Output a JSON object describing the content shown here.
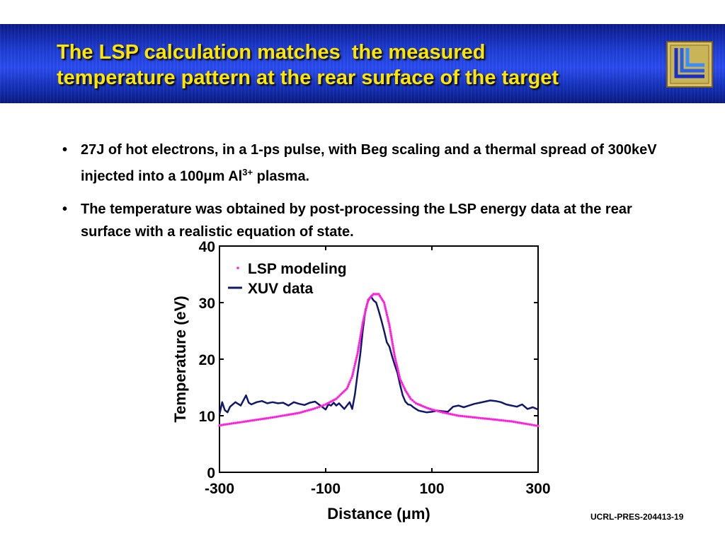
{
  "slide": {
    "title_line1": "The LSP calculation matches  the measured",
    "title_line2": "temperature pattern at the rear surface of the target",
    "bullets": [
      {
        "text_before_mu": "27J of hot electrons, in a 1-ps pulse, with Beg scaling and a thermal spread of 300keV injected into a 100",
        "mu": "μ",
        "text_after_mu": "m Al",
        "superscript": "3+",
        "text_end": " plasma."
      },
      {
        "text": "The temperature was obtained by post-processing the LSP energy data at the rear surface with a realistic equation of state."
      }
    ],
    "footer_id": "UCRL-PRES-204413-19",
    "colors": {
      "title": "#ffe600",
      "banner": "#1f3fd8",
      "lsp_series": "#ff22dd",
      "xuv_series": "#10186e"
    }
  },
  "chart_data": {
    "type": "line",
    "xlabel": "Distance (μm)",
    "ylabel": "Temperature (eV)",
    "xlim": [
      -300,
      300
    ],
    "ylim": [
      0,
      40
    ],
    "x_ticks": [
      "-300",
      "-100",
      "100",
      "300"
    ],
    "y_ticks": [
      "0",
      "10",
      "20",
      "30",
      "40"
    ],
    "legend_position": "top-left",
    "series": [
      {
        "name": "LSP modeling",
        "style": "dotted",
        "color": "#ff22dd",
        "x": [
          -300,
          -250,
          -200,
          -150,
          -120,
          -100,
          -80,
          -60,
          -50,
          -40,
          -30,
          -20,
          -10,
          0,
          10,
          20,
          30,
          40,
          50,
          60,
          70,
          80,
          90,
          100,
          120,
          150,
          200,
          250,
          300
        ],
        "y": [
          8.3,
          9.0,
          9.7,
          10.5,
          11.3,
          12.0,
          13.0,
          14.8,
          17.0,
          21.0,
          26.5,
          30.5,
          31.5,
          31.5,
          30.0,
          26.0,
          20.5,
          16.5,
          14.5,
          13.0,
          12.2,
          11.8,
          11.4,
          11.1,
          10.6,
          10.0,
          9.5,
          9.0,
          8.2
        ]
      },
      {
        "name": "XUV data",
        "style": "solid",
        "color": "#10186e",
        "x": [
          -300,
          -295,
          -290,
          -285,
          -280,
          -270,
          -260,
          -250,
          -245,
          -240,
          -230,
          -220,
          -210,
          -200,
          -190,
          -180,
          -170,
          -160,
          -150,
          -140,
          -130,
          -120,
          -110,
          -100,
          -95,
          -90,
          -85,
          -80,
          -75,
          -70,
          -65,
          -60,
          -55,
          -50,
          -45,
          -40,
          -35,
          -30,
          -25,
          -20,
          -15,
          -10,
          -5,
          0,
          5,
          10,
          15,
          20,
          25,
          30,
          35,
          40,
          45,
          50,
          55,
          60,
          65,
          70,
          75,
          80,
          90,
          100,
          110,
          120,
          130,
          140,
          150,
          160,
          170,
          180,
          190,
          200,
          210,
          220,
          230,
          240,
          250,
          260,
          270,
          280,
          290,
          300
        ],
        "y": [
          10.2,
          12.4,
          11.0,
          10.6,
          11.6,
          12.4,
          11.8,
          13.6,
          12.3,
          12.0,
          12.4,
          12.6,
          12.2,
          12.4,
          12.2,
          12.3,
          11.8,
          12.4,
          12.1,
          11.9,
          12.3,
          12.5,
          11.8,
          11.1,
          12.0,
          11.8,
          12.3,
          11.8,
          12.2,
          11.7,
          11.2,
          11.8,
          12.4,
          11.2,
          13.8,
          17.4,
          20.8,
          25.2,
          28.8,
          30.3,
          31.1,
          30.4,
          30.0,
          28.5,
          26.8,
          25.0,
          23.0,
          22.2,
          20.5,
          19.0,
          17.6,
          15.5,
          13.6,
          12.5,
          12.0,
          11.9,
          11.5,
          11.2,
          10.9,
          10.8,
          10.6,
          10.7,
          10.9,
          10.8,
          10.7,
          11.6,
          11.8,
          11.5,
          11.8,
          12.1,
          12.3,
          12.5,
          12.7,
          12.6,
          12.4,
          12.0,
          11.8,
          11.6,
          12.0,
          11.2,
          11.5,
          11.1
        ]
      }
    ]
  }
}
